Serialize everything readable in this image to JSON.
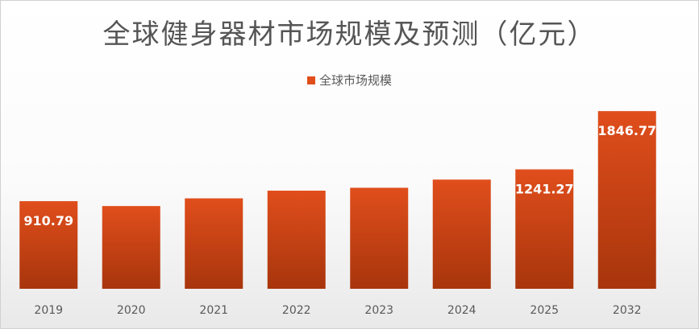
{
  "chart_data": {
    "type": "bar",
    "title": "全球健身器材市场规模及预测（亿元）",
    "categories": [
      "2019",
      "2020",
      "2021",
      "2022",
      "2023",
      "2024",
      "2025",
      "2032"
    ],
    "series": [
      {
        "name": "全球市场规模",
        "values": [
          910.79,
          860,
          940,
          1020,
          1050,
          1135,
          1241.27,
          1846.77
        ],
        "data_labels": [
          "910.79",
          "",
          "",
          "",
          "",
          "",
          "1241.27",
          "1846.77"
        ]
      }
    ],
    "legend_position": "top",
    "grid": false,
    "ylim": [
      0,
      1990
    ]
  },
  "colors": {
    "bar_top": "#e04e1c",
    "bar_bottom": "#a8350c",
    "axis_text": "#595959"
  }
}
